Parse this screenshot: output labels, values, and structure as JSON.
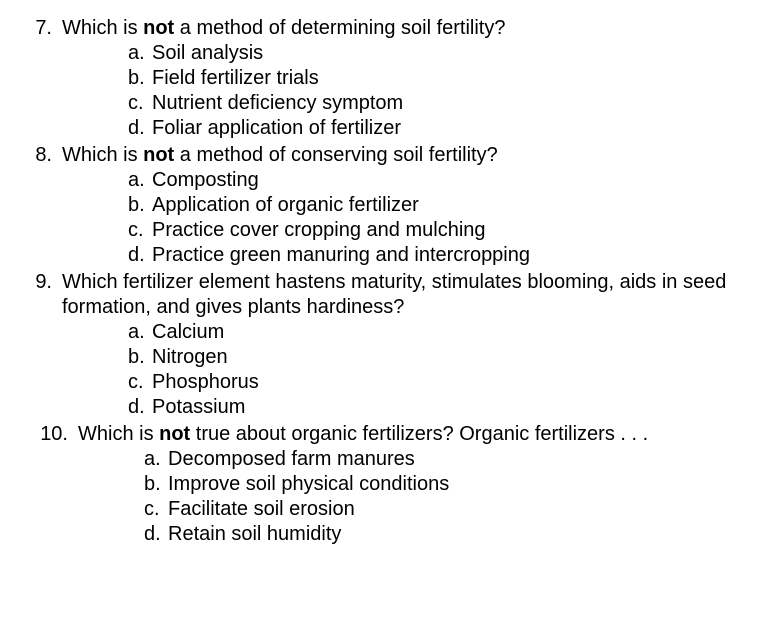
{
  "questions": [
    {
      "number": "7.",
      "prefix": "Which is ",
      "emph": "not",
      "suffix": " a method of determining soil fertility?",
      "options": [
        {
          "letter": "a.",
          "text": "Soil analysis"
        },
        {
          "letter": "b.",
          "text": "Field fertilizer trials"
        },
        {
          "letter": "c.",
          "text": "Nutrient deficiency symptom"
        },
        {
          "letter": "d.",
          "text": "Foliar application of fertilizer"
        }
      ]
    },
    {
      "number": "8.",
      "prefix": "Which is ",
      "emph": "not",
      "suffix": " a method of conserving soil fertility?",
      "options": [
        {
          "letter": "a.",
          "text": "Composting"
        },
        {
          "letter": "b.",
          "text": "Application of organic fertilizer"
        },
        {
          "letter": "c.",
          "text": "Practice cover cropping and mulching"
        },
        {
          "letter": "d.",
          "text": "Practice green manuring and intercropping"
        }
      ]
    },
    {
      "number": "9.",
      "prefix": "Which fertilizer element hastens maturity, stimulates blooming, aids in seed",
      "emph": "",
      "suffix": "",
      "line2": "formation, and gives plants hardiness?",
      "options": [
        {
          "letter": "a.",
          "text": "Calcium"
        },
        {
          "letter": "b.",
          "text": "Nitrogen"
        },
        {
          "letter": "c.",
          "text": "Phosphorus"
        },
        {
          "letter": "d.",
          "text": "Potassium"
        }
      ]
    },
    {
      "number": "10.",
      "prefix": "Which is ",
      "emph": "not",
      "suffix": " true about organic fertilizers? Organic fertilizers . . .",
      "options": [
        {
          "letter": "a.",
          "text": "Decomposed farm manures"
        },
        {
          "letter": "b.",
          "text": "Improve soil physical conditions"
        },
        {
          "letter": "c.",
          "text": "Facilitate soil erosion"
        },
        {
          "letter": "d.",
          "text": "Retain soil humidity"
        }
      ]
    }
  ]
}
